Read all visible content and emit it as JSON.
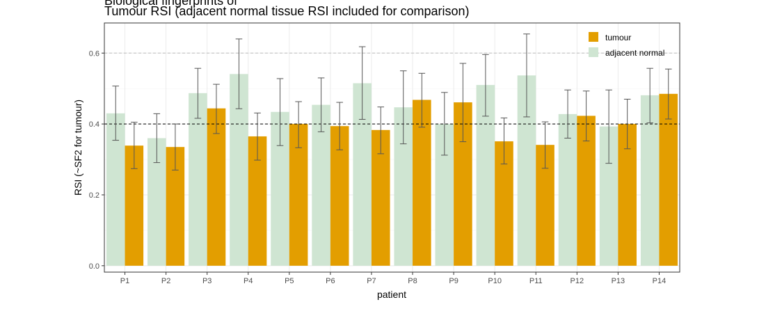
{
  "header": {
    "subtitle_top": "Biological fingerprints of",
    "title": "Tumour RSI (adjacent normal tissue RSI included for comparison)"
  },
  "chart_data": {
    "type": "bar",
    "title": "Tumour RSI (adjacent normal tissue RSI included for comparison)",
    "xlabel": "patient",
    "ylabel": "RSI (~SF2 for tumour)",
    "categories": [
      "P1",
      "P2",
      "P3",
      "P4",
      "P5",
      "P6",
      "P7",
      "P8",
      "P9",
      "P10",
      "P11",
      "P12",
      "P13",
      "P14"
    ],
    "yticks": [
      0.0,
      0.2,
      0.4,
      0.6
    ],
    "ytick_labels": [
      "0.0",
      "0.2",
      "0.4",
      "0.6"
    ],
    "ylim": [
      -0.018,
      0.685
    ],
    "reference_lines": [
      {
        "y": 0.6,
        "style": "dashed",
        "color": "#bdbdbd"
      },
      {
        "y": 0.4,
        "style": "dashed",
        "color": "#000000"
      }
    ],
    "grid": true,
    "legend_position": "top-right",
    "series": [
      {
        "name": "adjacent normal",
        "color": "#cfe5d2",
        "values": [
          0.43,
          0.36,
          0.487,
          0.541,
          0.434,
          0.454,
          0.515,
          0.447,
          0.4,
          0.51,
          0.537,
          0.428,
          0.393,
          0.481
        ],
        "error_low": [
          0.354,
          0.291,
          0.416,
          0.443,
          0.339,
          0.378,
          0.413,
          0.344,
          0.312,
          0.422,
          0.42,
          0.36,
          0.289,
          0.403
        ],
        "error_high": [
          0.507,
          0.429,
          0.557,
          0.64,
          0.528,
          0.53,
          0.618,
          0.55,
          0.489,
          0.596,
          0.654,
          0.496,
          0.496,
          0.557
        ]
      },
      {
        "name": "tumour",
        "color": "#e39e00",
        "values": [
          0.339,
          0.335,
          0.444,
          0.365,
          0.4,
          0.394,
          0.383,
          0.468,
          0.461,
          0.351,
          0.341,
          0.423,
          0.4,
          0.485
        ],
        "error_low": [
          0.274,
          0.27,
          0.373,
          0.298,
          0.333,
          0.327,
          0.316,
          0.391,
          0.35,
          0.287,
          0.275,
          0.352,
          0.33,
          0.414
        ],
        "error_high": [
          0.405,
          0.4,
          0.512,
          0.431,
          0.463,
          0.461,
          0.448,
          0.543,
          0.571,
          0.417,
          0.406,
          0.493,
          0.47,
          0.555
        ]
      }
    ],
    "legend": [
      {
        "label": "tumour",
        "color": "#e39e00"
      },
      {
        "label": "adjacent normal",
        "color": "#cfe5d2"
      }
    ]
  }
}
